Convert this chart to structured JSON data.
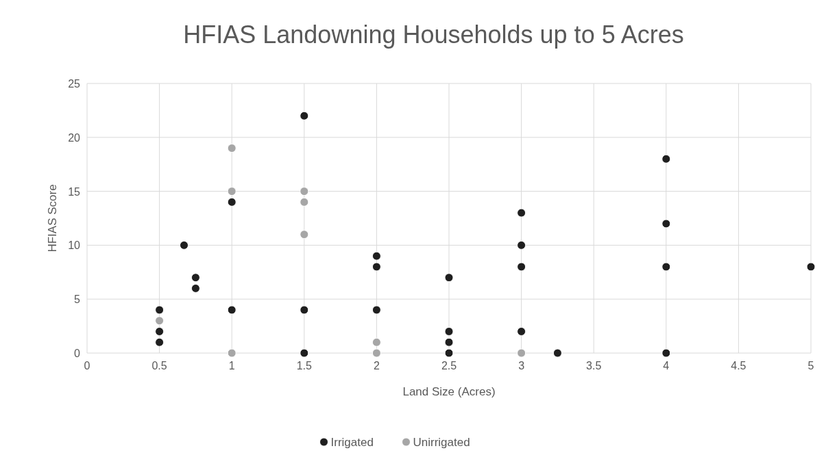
{
  "chart_data": {
    "type": "scatter",
    "title": "HFIAS Landowning Households up to 5 Acres",
    "xlabel": "Land Size (Acres)",
    "ylabel": "HFIAS Score",
    "series": [
      {
        "name": "Irrigated",
        "color": "#1f1f1f",
        "x": [
          0.5,
          0.5,
          0.5,
          0.67,
          0.75,
          0.75,
          1,
          1,
          1.5,
          1.5,
          1.5,
          2,
          2,
          2,
          2.5,
          2.5,
          2.5,
          2.5,
          3,
          3,
          3,
          3,
          3.25,
          4,
          4,
          4,
          4,
          5
        ],
        "values": [
          4,
          2,
          1,
          10,
          7,
          6,
          14,
          4,
          22,
          4,
          0,
          9,
          8,
          4,
          7,
          2,
          1,
          0,
          13,
          10,
          8,
          2,
          0,
          18,
          12,
          8,
          0,
          8
        ]
      },
      {
        "name": "Unirrigated",
        "color": "#a6a6a6",
        "x": [
          0.5,
          1,
          1,
          1,
          1.5,
          1.5,
          1.5,
          2,
          2,
          3
        ],
        "values": [
          3,
          19,
          15,
          0,
          15,
          14,
          11,
          1,
          0,
          0
        ]
      }
    ],
    "xlim": [
      0,
      5
    ],
    "xticks": [
      0,
      0.5,
      1,
      1.5,
      2,
      2.5,
      3,
      3.5,
      4,
      4.5,
      5
    ],
    "ylim": [
      0,
      25
    ],
    "yticks": [
      0,
      5,
      10,
      15,
      20,
      25
    ],
    "grid": true,
    "legend": "bottom",
    "marker": "circle"
  }
}
